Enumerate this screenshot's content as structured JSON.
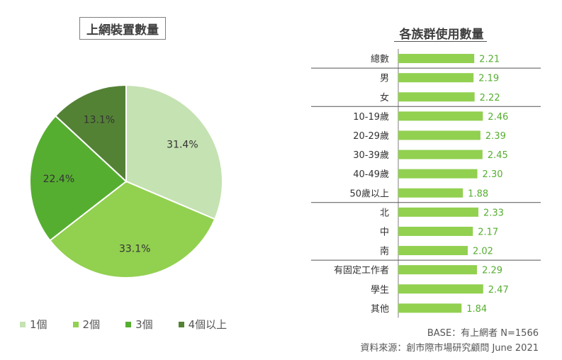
{
  "chart_data": [
    {
      "type": "pie",
      "title": "上網裝置數量",
      "slices": [
        {
          "label": "1個",
          "value": 31.4,
          "value_label": "31.4%",
          "color": "#c5e2b2"
        },
        {
          "label": "2個",
          "value": 33.1,
          "value_label": "33.1%",
          "color": "#92d050"
        },
        {
          "label": "3個",
          "value": 22.4,
          "value_label": "22.4%",
          "color": "#56ae31"
        },
        {
          "label": "4個以上",
          "value": 13.1,
          "value_label": "13.1%",
          "color": "#548235"
        }
      ]
    },
    {
      "type": "bar",
      "orientation": "horizontal",
      "title": "各族群使用數量",
      "bar_color": "#92d050",
      "categories": [
        "總數",
        "男",
        "女",
        "10-19歲",
        "20-29歲",
        "30-39歲",
        "40-49歲",
        "50歲以上",
        "北",
        "中",
        "南",
        "有固定工作者",
        "學生",
        "其他"
      ],
      "values": [
        2.21,
        2.19,
        2.22,
        2.46,
        2.39,
        2.45,
        2.3,
        1.88,
        2.33,
        2.17,
        2.02,
        2.29,
        2.47,
        1.84
      ],
      "value_labels": [
        "2.21",
        "2.19",
        "2.22",
        "2.46",
        "2.39",
        "2.45",
        "2.30",
        "1.88",
        "2.33",
        "2.17",
        "2.02",
        "2.29",
        "2.47",
        "1.84"
      ],
      "group_breaks_after": [
        "總數",
        "女",
        "50歲以上",
        "南"
      ]
    }
  ],
  "footnotes": {
    "base": "BASE：有上網者 N=1566",
    "source": "資料來源：創市際市場研究顧問 June 2021"
  }
}
